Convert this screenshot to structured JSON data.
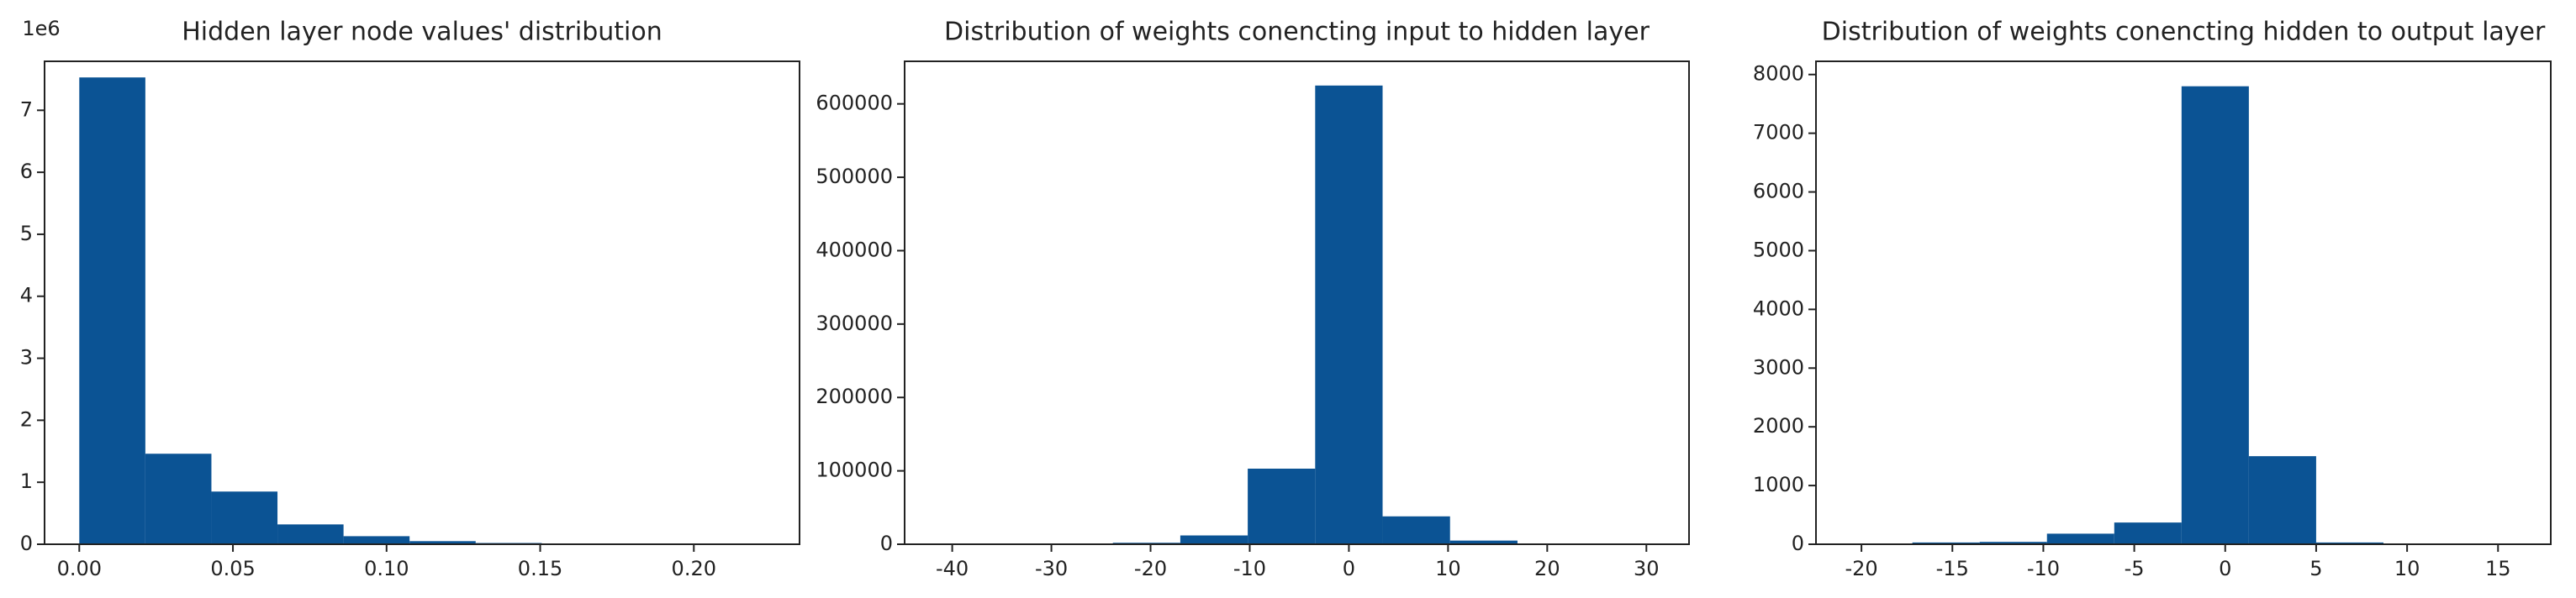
{
  "chart_data": [
    {
      "type": "histogram",
      "title": "Hidden layer node values' distribution",
      "color": "#0b5394",
      "bins": [
        0,
        0.0215,
        0.043,
        0.0645,
        0.086,
        0.1075,
        0.129,
        0.1505,
        0.172,
        0.1935,
        0.215
      ],
      "counts": [
        7.53,
        1.46,
        0.85,
        0.32,
        0.13,
        0.05,
        0.02,
        0.01,
        0.005,
        0.002
      ],
      "y_offset_label": "1e6",
      "xlim": [
        -0.0113,
        0.2344
      ],
      "ylim": [
        0,
        7.79
      ],
      "xticks": [
        {
          "value": 0,
          "label": "0.00"
        },
        {
          "value": 0.05,
          "label": "0.05"
        },
        {
          "value": 0.1,
          "label": "0.10"
        },
        {
          "value": 0.15,
          "label": "0.15"
        },
        {
          "value": 0.2,
          "label": "0.20"
        }
      ],
      "yticks": [
        0,
        1,
        2,
        3,
        4,
        5,
        6,
        7
      ]
    },
    {
      "type": "histogram",
      "title": "Distribution of weights conencting input to hidden layer",
      "color": "#0b5394",
      "bins": [
        -37.4,
        -30.6,
        -23.8,
        -17,
        -10.2,
        -3.4,
        3.4,
        10.2,
        17,
        23.8,
        30.6
      ],
      "counts": [
        10,
        50,
        2000,
        12000,
        103000,
        625000,
        38000,
        5000,
        500,
        100
      ],
      "xlim": [
        -44.8,
        34.3
      ],
      "ylim": [
        0,
        658000
      ],
      "xticks": [
        -40,
        -30,
        -20,
        -10,
        0,
        10,
        20,
        30
      ],
      "yticks": [
        0,
        100000,
        200000,
        300000,
        400000,
        500000,
        600000
      ]
    },
    {
      "type": "histogram",
      "title": "Distribution of weights conencting hidden to output layer",
      "color": "#0b5394",
      "bins": [
        -17.2,
        -13.5,
        -9.8,
        -6.1,
        -2.4,
        1.3,
        5.0,
        8.7,
        12.4,
        16.1
      ],
      "counts": [
        30,
        40,
        180,
        370,
        7800,
        1500,
        30,
        5,
        2
      ],
      "xlim": [
        -22.5,
        17.9
      ],
      "ylim": [
        0,
        8225
      ],
      "xticks": [
        -20,
        -15,
        -10,
        -5,
        0,
        5,
        10,
        15
      ],
      "yticks": [
        0,
        1000,
        2000,
        3000,
        4000,
        5000,
        6000,
        7000,
        8000
      ]
    }
  ]
}
